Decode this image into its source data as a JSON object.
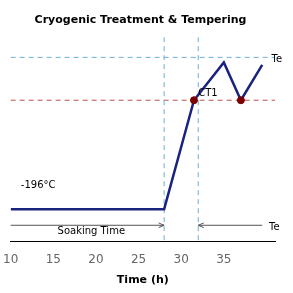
{
  "chart_data": {
    "type": "line",
    "title": "Cryogenic Treatment & Tempering",
    "xlabel": "Time (h)",
    "x": [
      10,
      28,
      31.5,
      35,
      37,
      39.5
    ],
    "values": [
      -196,
      -196,
      20,
      95,
      20,
      90
    ],
    "color": "#1a237e",
    "xlim": [
      10,
      41
    ],
    "xticks": [
      10,
      15,
      20,
      25,
      30,
      35
    ],
    "ylim": [
      -260,
      145
    ],
    "tick_labels": "x",
    "grid": false,
    "points": [
      {
        "x": 31.5,
        "y": 20,
        "color": "#7b0000"
      },
      {
        "x": 37,
        "y": 20,
        "color": "#7b0000"
      }
    ],
    "hlines": [
      {
        "y": 105,
        "color": "#6baed6",
        "line_style": "dashed"
      },
      {
        "y": 20,
        "color": "#c0504d",
        "line_style": "dashed"
      }
    ],
    "vlines": [
      {
        "x": 28,
        "color": "#6baed6",
        "line_style": "dashed"
      },
      {
        "x": 32,
        "color": "#6baed6",
        "line_style": "dashed"
      }
    ],
    "arrows": [
      {
        "from": [
          10,
          -228
        ],
        "to": [
          28,
          -228
        ],
        "color": "#555555"
      },
      {
        "from": [
          39.5,
          -228
        ],
        "to": [
          32,
          -228
        ],
        "color": "#555555"
      }
    ],
    "annotations": [
      {
        "text": "CT1",
        "x": 32,
        "y": 28
      },
      {
        "text": "-196°C",
        "x": 11.2,
        "y": -155
      },
      {
        "text": "Soaking Time",
        "x": 15.5,
        "y": -246
      },
      {
        "text": "Te",
        "x": 40.6,
        "y": 95
      },
      {
        "text": "Te",
        "x": 40.3,
        "y": -237
      }
    ]
  }
}
